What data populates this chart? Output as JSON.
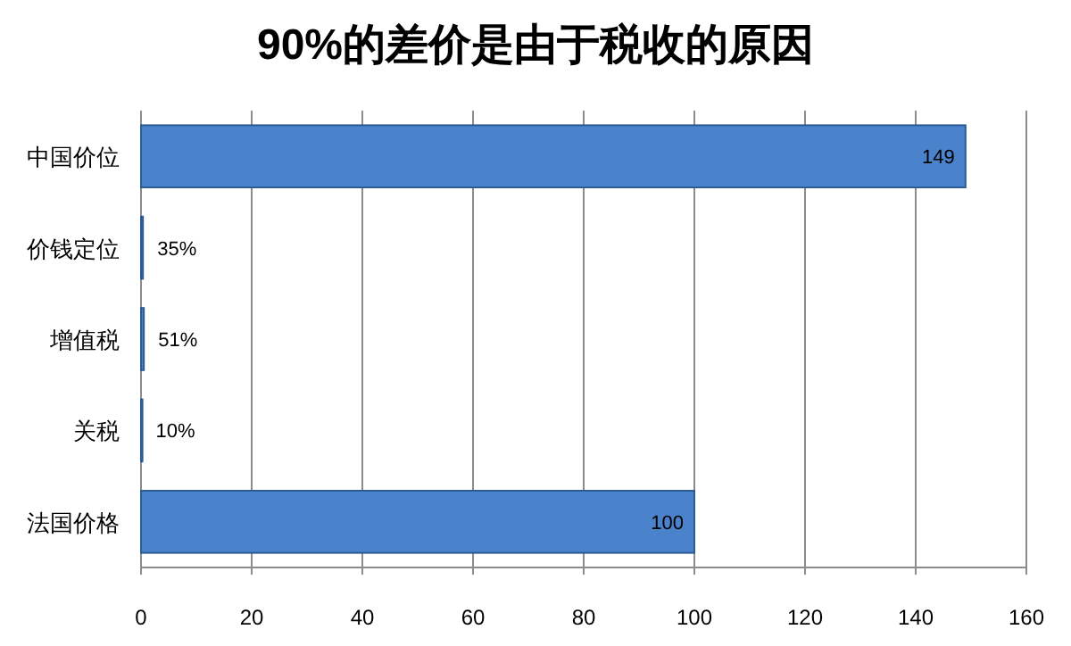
{
  "chart_data": {
    "type": "bar",
    "orientation": "horizontal",
    "title": "90%的差价是由于税收的原因",
    "categories": [
      "中国价位",
      "价钱定位",
      "增值税",
      "关税",
      "法国价格"
    ],
    "values": [
      149,
      0.35,
      0.51,
      0.1,
      100
    ],
    "value_labels": [
      "149",
      "35%",
      "51%",
      "10%",
      "100"
    ],
    "color": "#4a82cc",
    "xlim": [
      0,
      160
    ],
    "xticks": [
      0,
      20,
      40,
      60,
      80,
      100,
      120,
      140,
      160
    ],
    "grid": "x"
  }
}
